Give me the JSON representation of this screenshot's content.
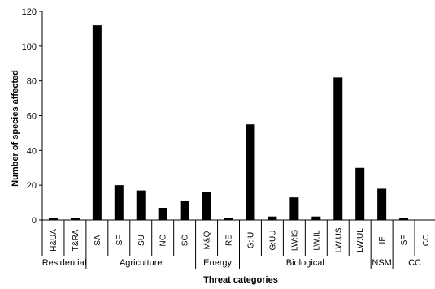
{
  "chart_data": {
    "type": "bar",
    "title": "",
    "xlabel": "Threat categories",
    "ylabel": "Number of species affected",
    "ylim": [
      0,
      120
    ],
    "yticks": [
      0,
      20,
      40,
      60,
      80,
      100,
      120
    ],
    "grid": false,
    "legend": "none",
    "bar_color": "#000000",
    "categories": [
      "H&UA",
      "T&RA",
      "SA",
      "SF",
      "SU",
      "NG",
      "SG",
      "M&Q",
      "RE",
      "G:IU",
      "G:UU",
      "LW:IS",
      "LW:IL",
      "LW:US",
      "LW:UL",
      "IF",
      "SF",
      "CC"
    ],
    "values": [
      1,
      1,
      112,
      20,
      17,
      7,
      11,
      16,
      1,
      55,
      2,
      13,
      2,
      82,
      30,
      18,
      1,
      null
    ],
    "groups": [
      {
        "label": "Residential",
        "start": 0,
        "end": 1
      },
      {
        "label": "Agriculture",
        "start": 2,
        "end": 6
      },
      {
        "label": "Energy",
        "start": 7,
        "end": 8
      },
      {
        "label": "Biological",
        "start": 9,
        "end": 14
      },
      {
        "label": "NSM",
        "start": 15,
        "end": 15
      },
      {
        "label": "CC",
        "start": 16,
        "end": 17
      }
    ]
  }
}
